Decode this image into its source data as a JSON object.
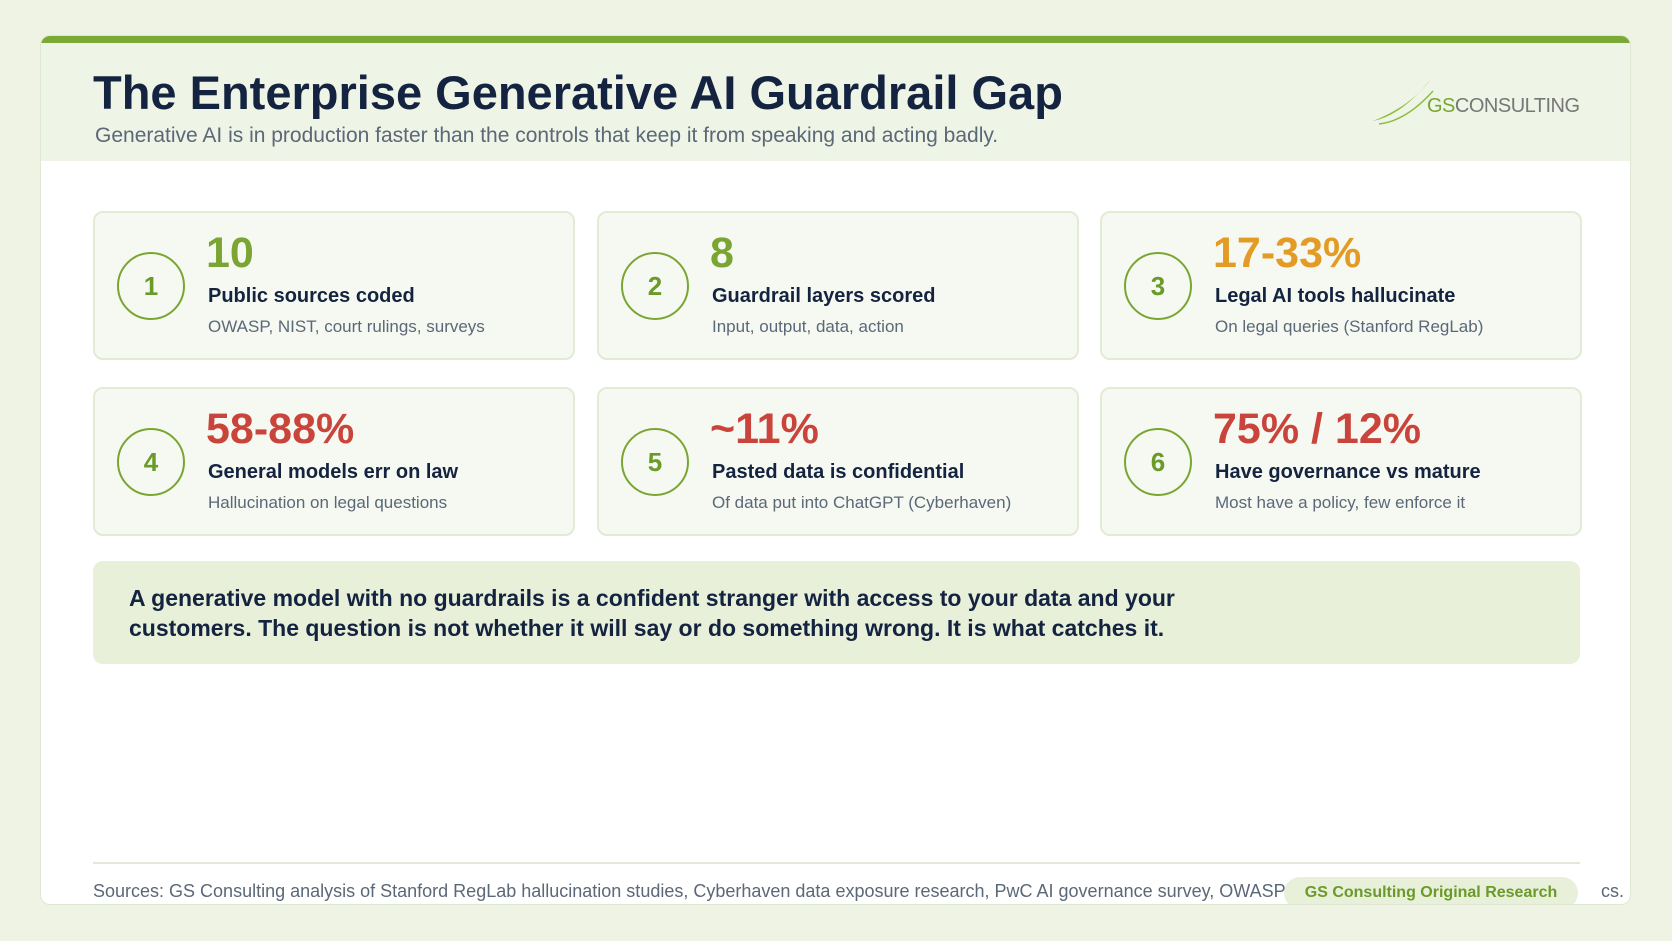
{
  "header": {
    "title": "The Enterprise Generative AI Guardrail Gap",
    "subtitle": "Generative AI is in production faster than the controls that keep it from speaking and acting badly.",
    "logo": {
      "mark": "GS",
      "name": "CONSULTING"
    }
  },
  "cards": [
    {
      "number": 1,
      "value": 10,
      "label": "Public sources coded",
      "description": "OWASP, NIST, court rulings, surveys",
      "color": "#7aa532"
    },
    {
      "number": 2,
      "value": 8,
      "label": "Guardrail layers scored",
      "description": "Input, output, data, action",
      "color": "#7aa532"
    },
    {
      "number": 3,
      "value": "17-33%",
      "label": "Legal AI tools hallucinate",
      "description": "On legal queries (Stanford RegLab)",
      "color": "#e39b25"
    },
    {
      "number": 4,
      "value": "58-88%",
      "label": "General models err on law",
      "description": "Hallucination on legal questions",
      "color": "#c9443b"
    },
    {
      "number": 5,
      "value": "~11%",
      "label": "Pasted data is confidential",
      "description": "Of data put into ChatGPT (Cyberhaven)",
      "color": "#c9443b"
    },
    {
      "number": 6,
      "value": "75% / 12%",
      "label": "Have governance vs mature",
      "description": "Most have a policy, few enforce it",
      "color": "#c9443b"
    }
  ],
  "callout": {
    "lines": [
      "A generative model with no guardrails is a confident stranger with access to your data and your",
      "customers. The question is not whether it will say or do something wrong. It is what catches it."
    ]
  },
  "footer": {
    "sources": "Sources: GS Consulting analysis of Stanford RegLab hallucination studies, Cyberhaven data exposure research, PwC AI governance survey, OWASP",
    "sources_tail": "cs.",
    "badge": "GS Consulting Original Research"
  }
}
